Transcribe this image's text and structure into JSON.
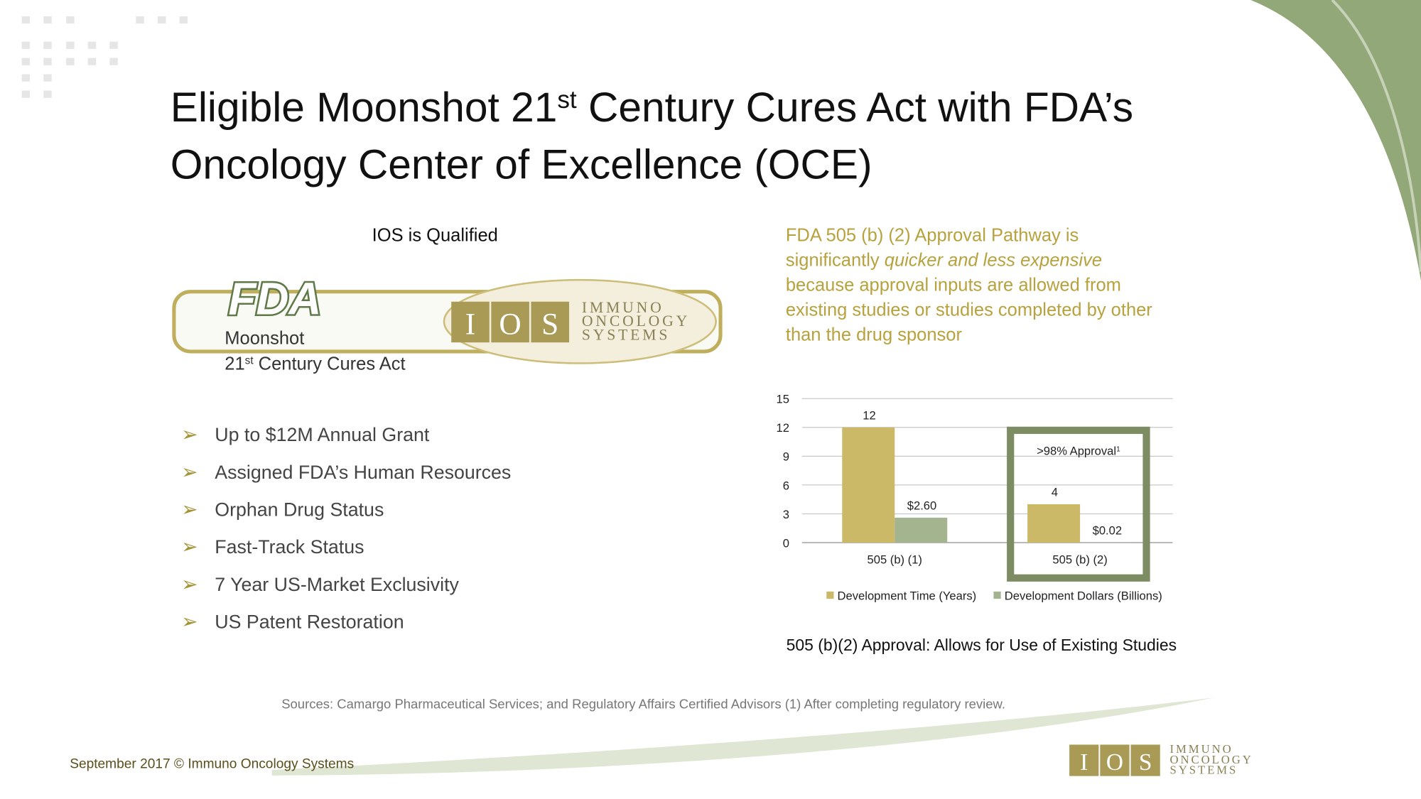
{
  "title": {
    "part1": "Eligible Moonshot 21",
    "sup": "st",
    "part2": " Century Cures Act with FDA’s",
    "line2": "Oncology Center of Excellence (OCE)"
  },
  "qualified": "IOS is Qualified",
  "fda_logo": "FDA",
  "moonshot": {
    "line1": "Moonshot",
    "num": "21",
    "sup": "st",
    "rest": " Century Cures Act"
  },
  "ios_logo": {
    "letters": [
      "I",
      "O",
      "S"
    ],
    "words": [
      "IMMUNO",
      "ONCOLOGY",
      "SYSTEMS"
    ]
  },
  "bullets": [
    "Up to $12M Annual Grant",
    "Assigned FDA’s Human Resources",
    "Orphan Drug Status",
    "Fast-Track Status",
    "7 Year US-Market Exclusivity",
    "US Patent Restoration"
  ],
  "pathway": {
    "line1": "FDA 505 (b) (2) Approval Pathway is",
    "line2a": "significantly ",
    "emphasis": "quicker and less expensive",
    "line3": "because approval inputs are allowed from",
    "line4": "existing studies or studies completed by other",
    "line5": "than the drug sponsor"
  },
  "chart_data": {
    "type": "bar",
    "categories": [
      "505 (b) (1)",
      "505 (b) (2)"
    ],
    "series": [
      {
        "name": "Development Time (Years)",
        "color": "#cbb968",
        "values": [
          12,
          4
        ]
      },
      {
        "name": "Development Dollars (Billions)",
        "color": "#a3b48e",
        "values": [
          2.6,
          0.02
        ],
        "value_labels": [
          "$2.60",
          "$0.02"
        ]
      }
    ],
    "ylim": [
      0,
      15
    ],
    "yticks": [
      0,
      3,
      6,
      9,
      12,
      15
    ],
    "grid": true,
    "legend": "bottom",
    "annotation": {
      "text": ">98% Approval",
      "footnote": "1"
    },
    "caption": "505 (b)(2) Approval: Allows for Use of Existing Studies"
  },
  "sources": "Sources: Camargo Pharmaceutical Services; and Regulatory Affairs Certified Advisors (1) After completing regulatory review.",
  "footer": "September 2017 © Immuno Oncology Systems"
}
